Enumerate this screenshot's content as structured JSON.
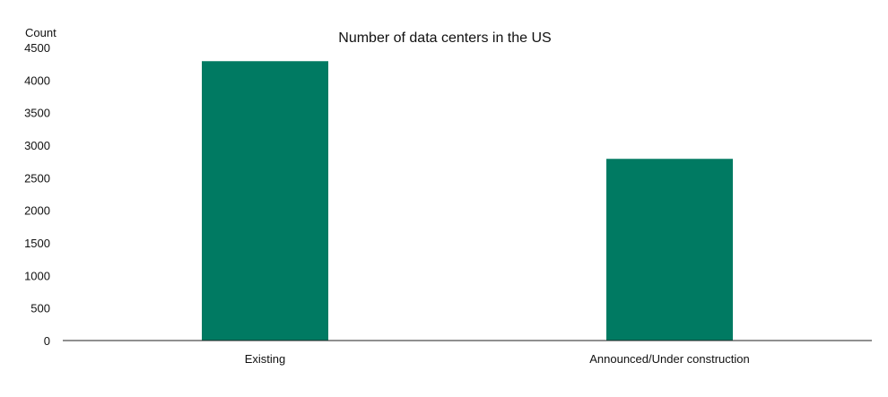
{
  "chart_data": {
    "type": "bar",
    "title": "Number of data centers in the US",
    "ylabel": "Count",
    "xlabel": "",
    "categories": [
      "Existing",
      "Announced/Under construction"
    ],
    "values": [
      4290,
      2790
    ],
    "ylim": [
      0,
      4500
    ],
    "yticks": [
      0,
      500,
      1000,
      1500,
      2000,
      2500,
      3000,
      3500,
      4000,
      4500
    ],
    "grid": false,
    "legend": "none",
    "bar_color": "#007A62",
    "axis_color": "#222222",
    "text_color": "#111111"
  }
}
